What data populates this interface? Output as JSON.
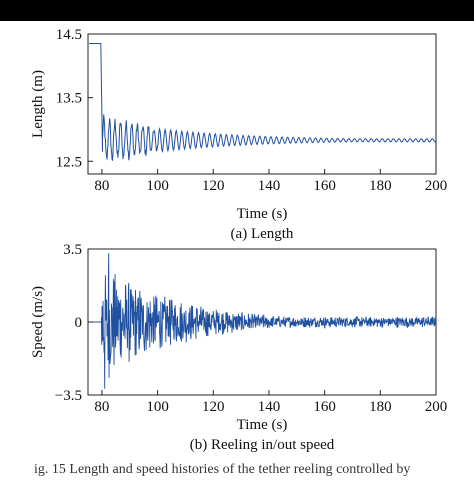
{
  "caption_fragment": "ig. 15  Length and speed histories of the tether reeling controlled by",
  "chart_data": [
    {
      "type": "line",
      "caption": "(a) Length",
      "xlabel": "Time (s)",
      "ylabel": "Length (m)",
      "xlim": [
        75,
        200
      ],
      "ylim": [
        12.3,
        14.5
      ],
      "xticks": [
        80,
        100,
        120,
        140,
        160,
        180,
        200
      ],
      "yticks": [
        12.5,
        13.5,
        14.5
      ],
      "ytick_labels": [
        "12.5",
        "13.5",
        "14.5"
      ],
      "grid": false,
      "color": "#2050a0",
      "signal": {
        "initial_value": 14.35,
        "switch_time": 79.6,
        "drop_end_time": 80.2,
        "bottom_value": 12.45,
        "steady_value": 12.83,
        "oscillation_start_amplitude": 0.32,
        "oscillation_decay_time": 35,
        "oscillation_period": 2.0,
        "residual_amplitude": 0.025
      }
    },
    {
      "type": "line",
      "caption": "(b) Reeling  in/out speed",
      "xlabel": "Time (s)",
      "ylabel": "Speed (m/s)",
      "xlim": [
        75,
        200
      ],
      "ylim": [
        -3.5,
        3.5
      ],
      "xticks": [
        80,
        100,
        120,
        140,
        160,
        180,
        200
      ],
      "yticks": [
        -3.5,
        0,
        3.5
      ],
      "ytick_labels": [
        "−3.5",
        "0",
        "3.5"
      ],
      "grid": false,
      "color": "#2050a0",
      "signal": {
        "quiet_until": 79.8,
        "peak_max": 3.3,
        "peak_min": -3.2,
        "envelope_start": 3.0,
        "envelope_decay_time": 28,
        "residual_amplitude": 0.28
      }
    }
  ]
}
